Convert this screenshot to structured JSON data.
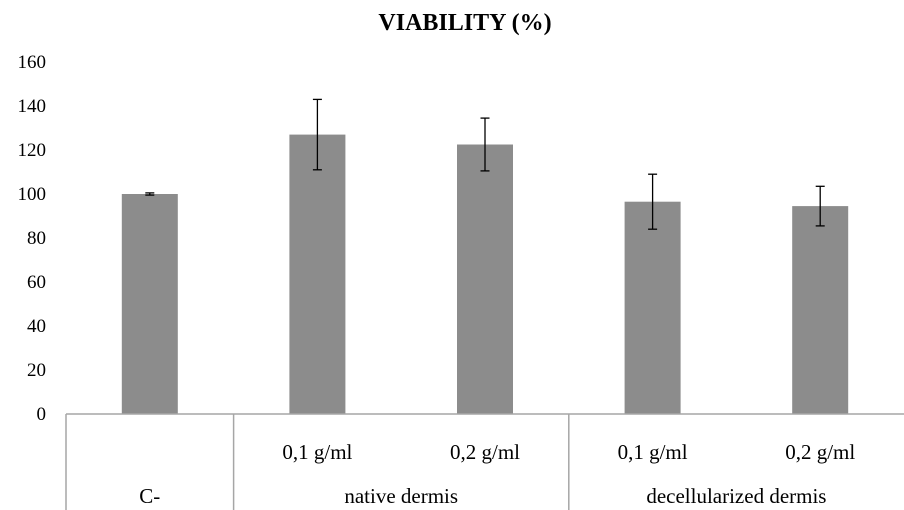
{
  "chart_data": {
    "type": "bar",
    "title": "VIABILITY (%)",
    "ylim": [
      0,
      160
    ],
    "yticks": [
      0,
      20,
      40,
      60,
      80,
      100,
      120,
      140,
      160
    ],
    "grid": false,
    "legend": "none",
    "bar_color": "#8c8c8c",
    "categories": [
      {
        "label": "",
        "group": "C-",
        "value": 100,
        "error": 0.5
      },
      {
        "label": "0,1 g/ml",
        "group": "native dermis",
        "value": 127,
        "error": 16
      },
      {
        "label": "0,2 g/ml",
        "group": "native dermis",
        "value": 122.5,
        "error": 12
      },
      {
        "label": "0,1 g/ml",
        "group": "decellularized dermis",
        "value": 96.5,
        "error": 12.5
      },
      {
        "label": "0,2 g/ml",
        "group": "decellularized dermis",
        "value": 94.5,
        "error": 9
      }
    ],
    "groups": [
      {
        "label": "C-",
        "span": 1
      },
      {
        "label": "native dermis",
        "span": 2
      },
      {
        "label": "decellularized dermis",
        "span": 2
      }
    ]
  }
}
